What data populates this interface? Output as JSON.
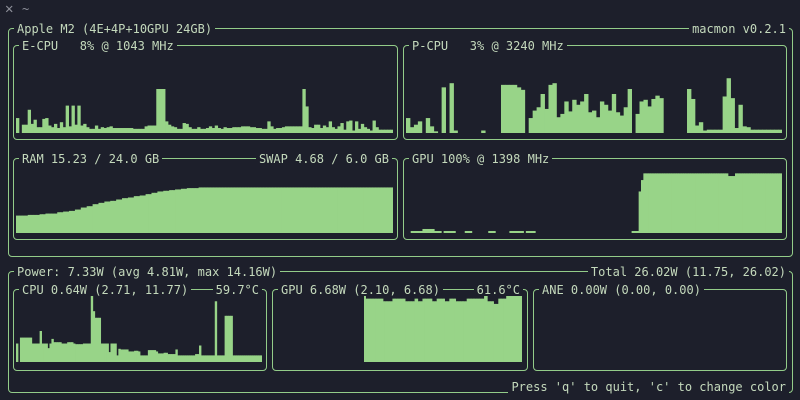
{
  "window": {
    "close_glyph": "✕",
    "title": "~"
  },
  "header": {
    "system_label": "Apple M2 (4E+4P+10GPU 24GB)",
    "app_label": "macmon v0.2.1"
  },
  "ecpu": {
    "label": "E-CPU   8% @ 1043 MHz",
    "usage_percent": 8,
    "history_percent": [
      18,
      0,
      10,
      10,
      28,
      11,
      16,
      7,
      7,
      17,
      18,
      9,
      7,
      11,
      6,
      13,
      7,
      33,
      8,
      33,
      10,
      33,
      9,
      11,
      7,
      5,
      5,
      9,
      5,
      7,
      6,
      7,
      8,
      6,
      6,
      6,
      6,
      6,
      6,
      6,
      5,
      5,
      5,
      5,
      8,
      9,
      9,
      9,
      53,
      53,
      53,
      14,
      10,
      8,
      7,
      5,
      5,
      12,
      11,
      7,
      5,
      5,
      7,
      5,
      5,
      6,
      8,
      6,
      9,
      6,
      5,
      7,
      6,
      6,
      7,
      7,
      7,
      8,
      8,
      8,
      7,
      7,
      6,
      6,
      5,
      5,
      14,
      8,
      5,
      6,
      6,
      7,
      8,
      8,
      8,
      8,
      8,
      8,
      53,
      32,
      7,
      6,
      10,
      10,
      6,
      9,
      7,
      14,
      7,
      5,
      8,
      12,
      4,
      14,
      15,
      3,
      14,
      5,
      11,
      7,
      5,
      3,
      15,
      7,
      4,
      4,
      4,
      4,
      4
    ]
  },
  "pcpu": {
    "label": "P-CPU   3% @ 3240 MHz",
    "usage_percent": 3,
    "history_percent": [
      18,
      7,
      10,
      14,
      0,
      18,
      8,
      2,
      0,
      55,
      0,
      60,
      3,
      0,
      0,
      0,
      0,
      0,
      0,
      3,
      0,
      0,
      0,
      0,
      58,
      58,
      58,
      58,
      55,
      52,
      0,
      18,
      27,
      31,
      47,
      29,
      58,
      60,
      19,
      23,
      38,
      26,
      40,
      34,
      38,
      47,
      25,
      27,
      19,
      38,
      34,
      27,
      47,
      25,
      21,
      31,
      53,
      0,
      23,
      38,
      40,
      32,
      41,
      45,
      42,
      0,
      0,
      0,
      0,
      0,
      0,
      53,
      41,
      9,
      13,
      3,
      4,
      4,
      4,
      4,
      44,
      66,
      42,
      6,
      34,
      8,
      7,
      4,
      4,
      4,
      4,
      4,
      4,
      4,
      4
    ]
  },
  "memory": {
    "ram_label": "RAM 15.23 / 24.0 GB",
    "swap_label": "SWAP 4.68 / 6.0 GB",
    "ram_percent": 63.5,
    "history_percent": [
      26,
      26,
      26,
      26,
      27,
      27,
      27,
      27,
      28,
      28,
      29,
      29,
      29,
      29,
      31,
      31,
      32,
      32,
      33,
      33,
      35,
      35,
      38,
      38,
      40,
      40,
      43,
      43,
      45,
      45,
      47,
      47,
      48,
      48,
      50,
      50,
      52,
      52,
      53,
      53,
      55,
      55,
      56,
      56,
      58,
      58,
      60,
      60,
      62,
      62,
      63,
      63,
      64,
      64,
      65,
      65,
      66,
      66,
      67,
      67,
      67,
      67,
      68,
      68,
      68,
      68,
      68,
      68,
      68,
      68,
      68,
      68,
      68,
      68,
      68,
      68,
      68,
      68,
      68,
      68,
      68,
      68,
      68,
      68,
      68,
      68,
      68,
      68,
      68,
      68,
      68,
      68,
      68,
      68,
      68,
      68,
      68,
      68,
      68,
      68,
      68,
      68,
      68,
      68,
      68,
      68,
      68,
      68,
      68,
      68,
      68,
      68,
      68,
      68,
      68,
      68,
      68,
      68,
      68,
      68,
      68,
      68,
      68,
      68,
      68,
      68,
      68,
      68
    ]
  },
  "gpu": {
    "label": "GPU 100% @ 1398 MHz",
    "usage_percent": 100,
    "history_percent": [
      0,
      0,
      3,
      3,
      3,
      3,
      3,
      6,
      6,
      6,
      6,
      6,
      3,
      3,
      3,
      0,
      3,
      3,
      3,
      3,
      3,
      0,
      0,
      0,
      0,
      3,
      3,
      3,
      0,
      0,
      0,
      0,
      0,
      0,
      0,
      3,
      3,
      3,
      0,
      0,
      0,
      0,
      0,
      0,
      3,
      3,
      3,
      3,
      3,
      3,
      0,
      3,
      3,
      3,
      3,
      0,
      0,
      0,
      0,
      0,
      0,
      0,
      0,
      0,
      0,
      0,
      0,
      0,
      0,
      0,
      0,
      0,
      0,
      0,
      0,
      0,
      0,
      0,
      0,
      0,
      0,
      0,
      0,
      0,
      0,
      0,
      0,
      0,
      0,
      0,
      0,
      0,
      0,
      0,
      0,
      0,
      3,
      3,
      3,
      62,
      79,
      89,
      89,
      89,
      89,
      89,
      89,
      89,
      89,
      89,
      89,
      89,
      89,
      89,
      89,
      89,
      89,
      89,
      89,
      89,
      89,
      89,
      89,
      89,
      89,
      89,
      89,
      89,
      89,
      89,
      89,
      89,
      89,
      89,
      89,
      89,
      89,
      85,
      85,
      85,
      89,
      89,
      89,
      89,
      89,
      89,
      89,
      89,
      89,
      89,
      89,
      89,
      89,
      89,
      89,
      89,
      89,
      89,
      89,
      89
    ]
  },
  "power": {
    "summary_label": "Power: 7.33W (avg 4.81W, max 14.16W)",
    "total_label": "Total 26.02W (11.75, 26.02)",
    "cpu": {
      "label": "CPU 0.64W (2.71, 11.77)",
      "temp_label": "59.7°C",
      "history_percent": [
        28,
        0,
        37,
        37,
        37,
        37,
        37,
        37,
        28,
        28,
        28,
        28,
        47,
        28,
        28,
        28,
        21,
        28,
        35,
        30,
        30,
        30,
        30,
        28,
        28,
        28,
        30,
        30,
        30,
        28,
        27,
        27,
        27,
        27,
        28,
        28,
        28,
        28,
        100,
        77,
        67,
        67,
        67,
        28,
        28,
        28,
        28,
        15,
        28,
        28,
        28,
        10,
        20,
        19,
        19,
        19,
        19,
        16,
        16,
        16,
        17,
        17,
        16,
        10,
        10,
        10,
        10,
        18,
        18,
        18,
        18,
        16,
        13,
        13,
        13,
        14,
        14,
        12,
        12,
        12,
        12,
        19,
        10,
        10,
        10,
        10,
        10,
        10,
        10,
        10,
        10,
        12,
        12,
        25,
        10,
        10,
        10,
        10,
        10,
        10,
        10,
        92,
        10,
        10,
        10,
        10,
        70,
        70,
        70,
        70,
        10,
        10,
        10,
        10,
        10,
        10,
        10,
        10,
        10,
        10,
        10,
        10,
        10,
        10,
        10
      ]
    },
    "gpu": {
      "label": "GPU 6.68W (2.10, 6.68)",
      "temp_label": "61.6°C",
      "history_percent": [
        100,
        96,
        96,
        96,
        96,
        96,
        96,
        96,
        96,
        96,
        96,
        96,
        92,
        92,
        92,
        92,
        92,
        92,
        96,
        96,
        96,
        96,
        96,
        96,
        96,
        96,
        92,
        92,
        92,
        92,
        92,
        92,
        96,
        96,
        92,
        92,
        92,
        96,
        96,
        96,
        96,
        96,
        96,
        92,
        92,
        92,
        96,
        96,
        96,
        96,
        96,
        92,
        92,
        92,
        96,
        96,
        96,
        96,
        92,
        92,
        92,
        92,
        92,
        92,
        92,
        96,
        96,
        96,
        96,
        96,
        96,
        96,
        96,
        96,
        96,
        96,
        100,
        100,
        92,
        92,
        92,
        92,
        88,
        88,
        88,
        96,
        96,
        96,
        96,
        96,
        100,
        100,
        100,
        100,
        100,
        100,
        100,
        100,
        100,
        100
      ]
    },
    "ane": {
      "label": "ANE 0.00W (0.00, 0.00)",
      "history_percent": []
    }
  },
  "footer": {
    "hint": "Press 'q' to quit, 'c' to change color"
  },
  "colors": {
    "accent": "#98d488",
    "border": "#93cc89",
    "background": "#1d1f2b",
    "text": "#c4d9bc"
  }
}
